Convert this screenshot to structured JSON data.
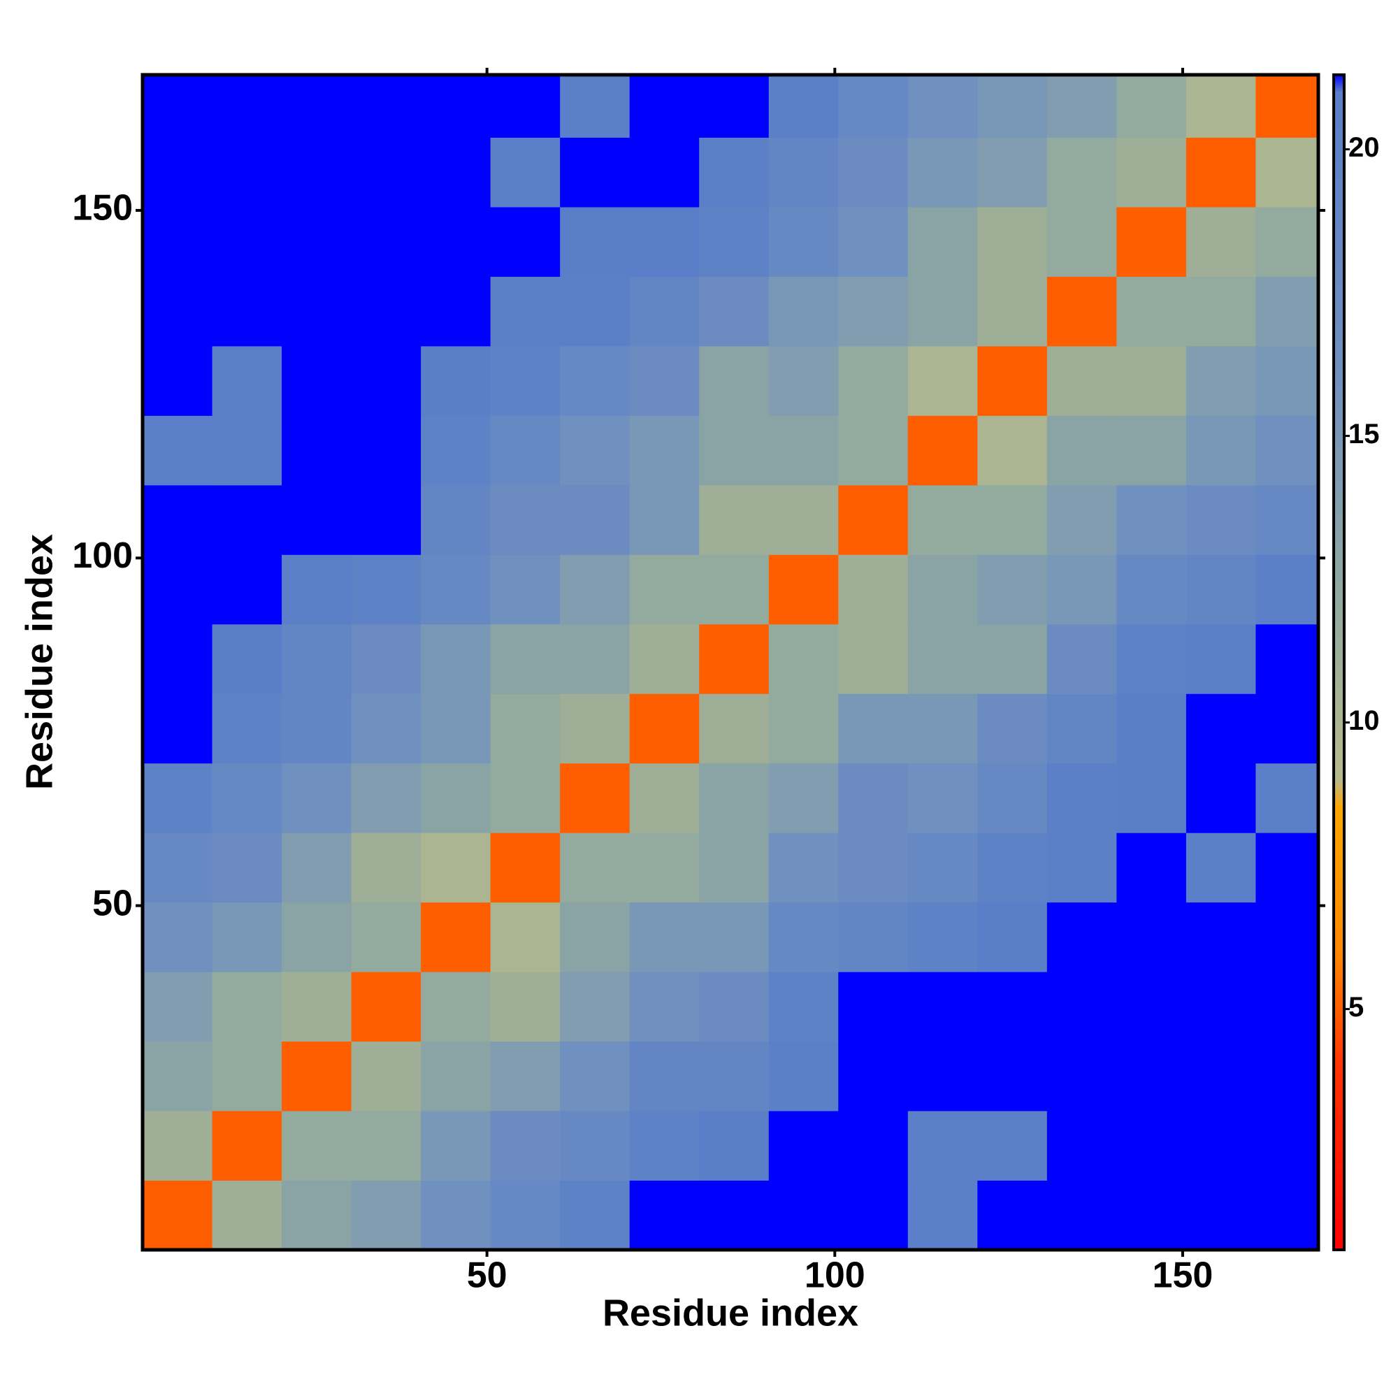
{
  "chart_data": {
    "type": "heatmap",
    "xlabel": "Residue index",
    "ylabel": "Residue index",
    "xbins": [
      0.5,
      10.5,
      20.5,
      30.5,
      40.5,
      50.5,
      60.5,
      70.5,
      80.5,
      90.5,
      100.5,
      110.5,
      120.5,
      130.5,
      140.5,
      150.5,
      160.5,
      169.5
    ],
    "ybins": [
      0.5,
      10.5,
      20.5,
      30.5,
      40.5,
      50.5,
      60.5,
      70.5,
      80.5,
      90.5,
      100.5,
      110.5,
      120.5,
      130.5,
      140.5,
      150.5,
      160.5,
      169.5
    ],
    "xlim": [
      0.5,
      169.5
    ],
    "ylim": [
      0.5,
      169.5
    ],
    "xticks": [
      50,
      100,
      150
    ],
    "yticks": [
      50,
      100,
      150
    ],
    "z": [
      [
        5,
        11,
        13,
        14,
        16,
        18,
        20,
        21.3,
        21.3,
        21.3,
        21.3,
        20.8,
        21.3,
        21.3,
        21.3,
        21.3,
        21.3
      ],
      [
        11,
        5,
        12,
        12,
        15,
        17,
        18,
        20,
        21,
        21.3,
        21.3,
        20.5,
        20.8,
        21.3,
        21.3,
        21.3,
        21.3
      ],
      [
        13,
        12,
        5,
        11,
        13,
        14,
        16,
        19,
        19,
        20.5,
        21.3,
        21.3,
        21.3,
        21.3,
        21.3,
        21.3,
        21.3
      ],
      [
        14,
        12,
        11,
        5,
        12,
        11,
        14,
        16,
        17,
        20,
        21.3,
        21.3,
        21.3,
        21.3,
        21.3,
        21.3,
        21.3
      ],
      [
        16,
        15,
        13,
        12,
        5,
        10,
        13,
        15,
        15,
        18,
        19,
        20,
        21,
        21.3,
        21.3,
        21.3,
        21.3
      ],
      [
        18,
        17,
        14,
        11,
        10,
        5,
        12,
        12,
        13,
        16,
        17,
        18,
        20,
        20.5,
        21.3,
        20.8,
        21.3
      ],
      [
        20,
        18,
        16,
        14,
        13,
        12,
        5,
        11,
        13,
        14,
        17,
        16,
        18,
        20.5,
        21,
        21.3,
        20.8
      ],
      [
        21.3,
        20,
        19,
        16,
        15,
        12,
        11,
        5,
        11,
        12,
        15,
        15,
        17,
        19,
        21,
        21.3,
        21.3
      ],
      [
        21.3,
        21,
        19,
        17,
        15,
        13,
        13,
        11,
        5,
        12,
        11,
        13,
        13,
        17,
        20,
        20.5,
        21.3
      ],
      [
        21.3,
        21.3,
        20.5,
        20,
        18,
        16,
        14,
        12,
        12,
        5,
        11,
        13,
        14,
        15,
        18,
        19,
        20.5
      ],
      [
        21.3,
        21.3,
        21.3,
        21.3,
        19,
        17,
        17,
        15,
        11,
        11,
        5,
        12,
        12,
        14,
        16,
        17,
        18
      ],
      [
        20.8,
        20.5,
        21.3,
        21.3,
        20,
        18,
        16,
        15,
        13,
        13,
        12,
        5,
        10,
        13,
        13,
        15,
        16
      ],
      [
        21.3,
        20.8,
        21.3,
        21.3,
        21,
        20,
        18,
        17,
        13,
        14,
        12,
        10,
        5,
        11,
        11,
        14,
        15
      ],
      [
        21.3,
        21.3,
        21.3,
        21.3,
        21.3,
        20.5,
        20.5,
        19,
        17,
        15,
        14,
        13,
        11,
        5,
        12,
        12,
        14
      ],
      [
        21.3,
        21.3,
        21.3,
        21.3,
        21.3,
        21.3,
        21,
        21,
        20,
        18,
        16,
        13,
        11,
        12,
        5,
        11,
        12
      ],
      [
        21.3,
        21.3,
        21.3,
        21.3,
        21.3,
        20.8,
        21.3,
        21.3,
        20.5,
        19,
        17,
        15,
        14,
        12,
        11,
        5,
        10
      ],
      [
        21.3,
        21.3,
        21.3,
        21.3,
        21.3,
        21.3,
        20.8,
        21.3,
        21.3,
        20.5,
        18,
        16,
        15,
        14,
        12,
        10,
        5
      ]
    ],
    "colorscale": [
      [
        0.8,
        "#ff0000"
      ],
      [
        4,
        "#ff3300"
      ],
      [
        6,
        "#ff8800"
      ],
      [
        8.5,
        "#ffa500"
      ],
      [
        9,
        "#b8ba8a"
      ],
      [
        12,
        "#93aa9e"
      ],
      [
        16,
        "#7090bf"
      ],
      [
        21,
        "#5a7ec8"
      ],
      [
        21.3,
        "#0000ff"
      ]
    ],
    "colorbar_lim": [
      0.8,
      21.3
    ],
    "colorbar_ticks": [
      5,
      10,
      15,
      20
    ]
  }
}
